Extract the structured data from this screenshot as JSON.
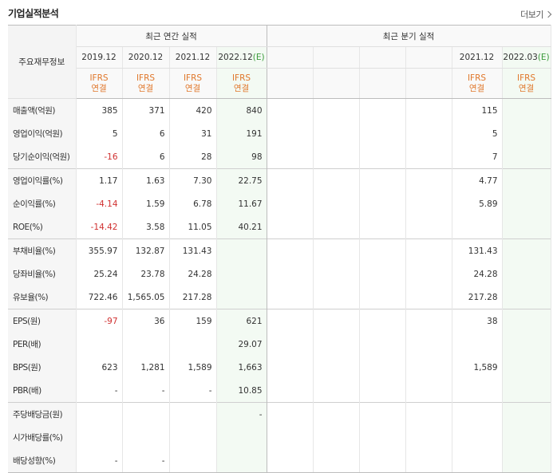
{
  "header": {
    "title": "기업실적분석",
    "more_label": "더보기"
  },
  "table": {
    "row_header": "주요재무정보",
    "annual_title": "최근 연간 실적",
    "quarterly_title": "최근 분기 실적",
    "annual_dates": [
      "2019.12",
      "2020.12",
      "2021.12",
      "2022.12"
    ],
    "annual_est_suffix": "(E)",
    "quarter_dates": [
      "",
      "",
      "",
      "",
      "2021.12",
      "2022.03"
    ],
    "quarter_est_suffix": "(E)",
    "ifrs_line1": "IFRS",
    "ifrs_line2": "연결",
    "rows": [
      {
        "label": "매출액(억원)",
        "annual": [
          "385",
          "371",
          "420",
          "840"
        ],
        "quarter": [
          "",
          "",
          "",
          "",
          "115",
          ""
        ]
      },
      {
        "label": "영업이익(억원)",
        "annual": [
          "5",
          "6",
          "31",
          "191"
        ],
        "quarter": [
          "",
          "",
          "",
          "",
          "5",
          ""
        ]
      },
      {
        "label": "당기순이익(억원)",
        "annual": [
          "-16",
          "6",
          "28",
          "98"
        ],
        "quarter": [
          "",
          "",
          "",
          "",
          "7",
          ""
        ]
      },
      {
        "label": "영업이익률(%)",
        "annual": [
          "1.17",
          "1.63",
          "7.30",
          "22.75"
        ],
        "quarter": [
          "",
          "",
          "",
          "",
          "4.77",
          ""
        ]
      },
      {
        "label": "순이익률(%)",
        "annual": [
          "-4.14",
          "1.59",
          "6.78",
          "11.67"
        ],
        "quarter": [
          "",
          "",
          "",
          "",
          "5.89",
          ""
        ]
      },
      {
        "label": "ROE(%)",
        "annual": [
          "-14.42",
          "3.58",
          "11.05",
          "40.21"
        ],
        "quarter": [
          "",
          "",
          "",
          "",
          "",
          ""
        ]
      },
      {
        "label": "부채비율(%)",
        "annual": [
          "355.97",
          "132.87",
          "131.43",
          ""
        ],
        "quarter": [
          "",
          "",
          "",
          "",
          "131.43",
          ""
        ]
      },
      {
        "label": "당좌비율(%)",
        "annual": [
          "25.24",
          "23.78",
          "24.28",
          ""
        ],
        "quarter": [
          "",
          "",
          "",
          "",
          "24.28",
          ""
        ]
      },
      {
        "label": "유보율(%)",
        "annual": [
          "722.46",
          "1,565.05",
          "217.28",
          ""
        ],
        "quarter": [
          "",
          "",
          "",
          "",
          "217.28",
          ""
        ]
      },
      {
        "label": "EPS(원)",
        "annual": [
          "-97",
          "36",
          "159",
          "621"
        ],
        "quarter": [
          "",
          "",
          "",
          "",
          "38",
          ""
        ]
      },
      {
        "label": "PER(배)",
        "annual": [
          "",
          "",
          "",
          "29.07"
        ],
        "quarter": [
          "",
          "",
          "",
          "",
          "",
          ""
        ]
      },
      {
        "label": "BPS(원)",
        "annual": [
          "623",
          "1,281",
          "1,589",
          "1,663"
        ],
        "quarter": [
          "",
          "",
          "",
          "",
          "1,589",
          ""
        ]
      },
      {
        "label": "PBR(배)",
        "annual": [
          "-",
          "-",
          "-",
          "10.85"
        ],
        "quarter": [
          "",
          "",
          "",
          "",
          "",
          ""
        ]
      },
      {
        "label": "주당배당금(원)",
        "annual": [
          "",
          "",
          "",
          "-"
        ],
        "quarter": [
          "",
          "",
          "",
          "",
          "",
          ""
        ]
      },
      {
        "label": "시가배당률(%)",
        "annual": [
          "",
          "",
          "",
          ""
        ],
        "quarter": [
          "",
          "",
          "",
          "",
          "",
          ""
        ]
      },
      {
        "label": "배당성향(%)",
        "annual": [
          "-",
          "-",
          "",
          ""
        ],
        "quarter": [
          "",
          "",
          "",
          "",
          "",
          ""
        ]
      }
    ]
  }
}
